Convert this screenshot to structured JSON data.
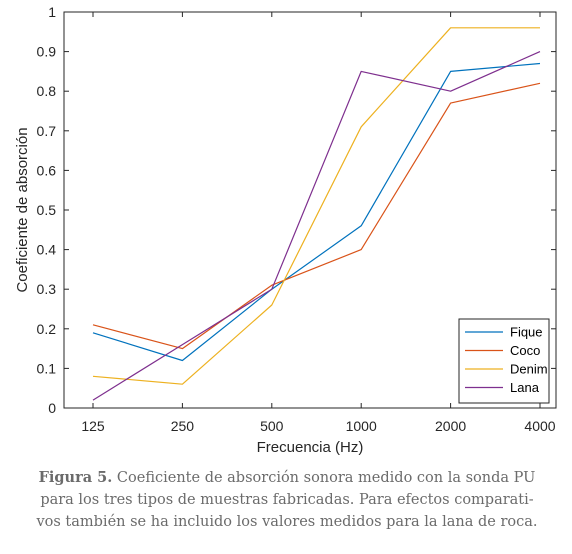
{
  "chart_data": {
    "type": "line",
    "title": "",
    "xlabel": "Frecuencia (Hz)",
    "ylabel": "Coeficiente de absorción",
    "categories": [
      "125",
      "250",
      "500",
      "1000",
      "2000",
      "4000"
    ],
    "ylim": [
      0,
      1
    ],
    "yticks": [
      "0",
      "0.1",
      "0.2",
      "0.3",
      "0.4",
      "0.5",
      "0.6",
      "0.7",
      "0.8",
      "0.9",
      "1"
    ],
    "grid": false,
    "legend_position": "bottom-right",
    "series": [
      {
        "name": "Fique",
        "color": "#0072BD",
        "values": [
          0.19,
          0.12,
          0.3,
          0.46,
          0.85,
          0.87
        ]
      },
      {
        "name": "Coco",
        "color": "#D95319",
        "values": [
          0.21,
          0.15,
          0.31,
          0.4,
          0.77,
          0.82
        ]
      },
      {
        "name": "Denim",
        "color": "#EDB120",
        "values": [
          0.08,
          0.06,
          0.26,
          0.71,
          0.96,
          0.96
        ]
      },
      {
        "name": "Lana",
        "color": "#7E2F8E",
        "values": [
          0.02,
          0.16,
          0.3,
          0.85,
          0.8,
          0.9
        ]
      }
    ]
  },
  "caption": {
    "label": "Figura 5.",
    "line1": "Coeficiente de absorción sonora medido con la sonda PU",
    "line2": "para los tres tipos de muestras fabricadas. Para efectos comparati-",
    "line3": "vos también se ha incluido los valores medidos para la lana de roca."
  }
}
